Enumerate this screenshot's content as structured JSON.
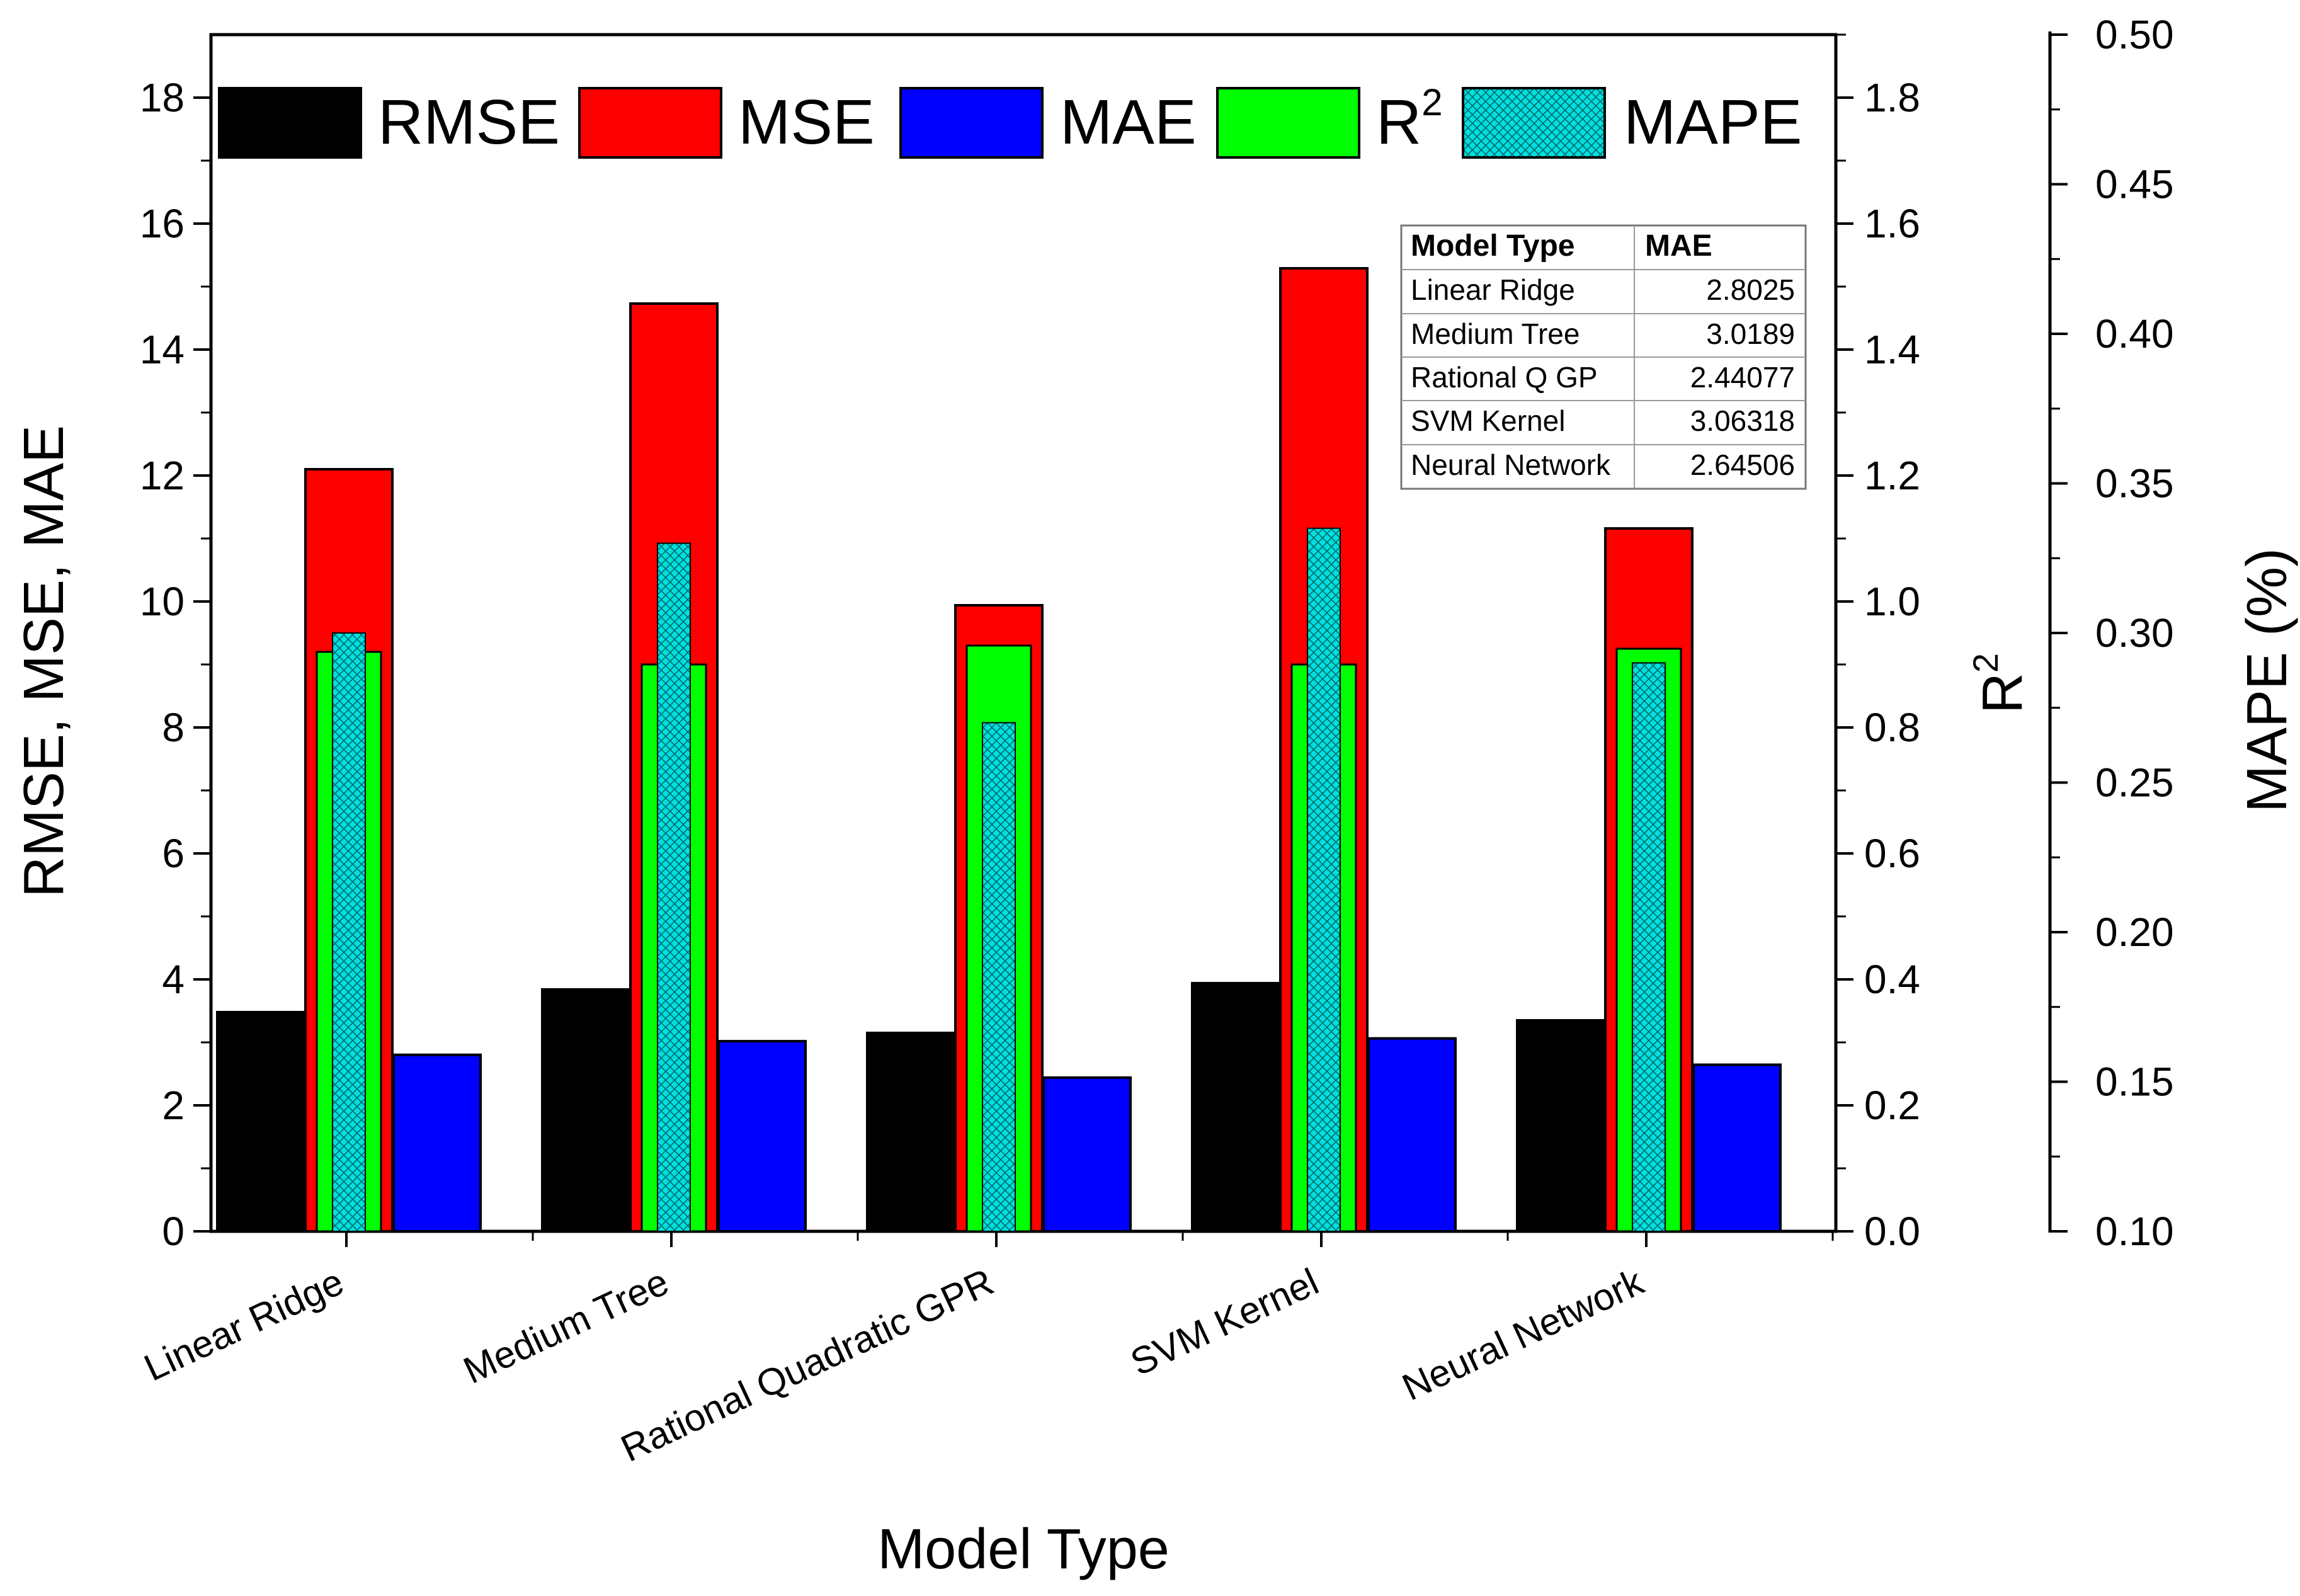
{
  "chart_data": {
    "type": "bar",
    "title": "",
    "xlabel": "Model Type",
    "ylabel": "RMSE, MSE, MAE",
    "y2label": "R",
    "y2label_sup": "2",
    "y3label": "MAPE (%)",
    "categories": [
      "Linear Ridge",
      "Medium Tree",
      "Rational Quadratic GPR",
      "SVM Kernel",
      "Neural Network"
    ],
    "ylim": [
      0,
      19
    ],
    "y2lim": [
      0,
      1.9
    ],
    "y3lim": [
      0.1,
      0.5
    ],
    "yticks": [
      "0",
      "2",
      "4",
      "6",
      "8",
      "10",
      "12",
      "14",
      "16",
      "18"
    ],
    "y2ticks": [
      "0.0",
      "0.2",
      "0.4",
      "0.6",
      "0.8",
      "1.0",
      "1.2",
      "1.4",
      "1.6",
      "1.8"
    ],
    "y3ticks": [
      "0.10",
      "0.15",
      "0.20",
      "0.25",
      "0.30",
      "0.35",
      "0.40",
      "0.45",
      "0.50"
    ],
    "series": [
      {
        "name": "RMSE",
        "axis": "left",
        "color": "#000000",
        "values": [
          3.48,
          3.84,
          3.15,
          3.94,
          3.35
        ]
      },
      {
        "name": "MSE",
        "axis": "left",
        "color": "#ff0000",
        "values": [
          12.1,
          14.73,
          9.94,
          15.29,
          11.16
        ]
      },
      {
        "name": "MAE",
        "axis": "left",
        "color": "#0000ff",
        "values": [
          2.8025,
          3.0189,
          2.44077,
          3.06318,
          2.64506
        ]
      },
      {
        "name": "R",
        "sup": "2",
        "axis": "right",
        "color": "#00ff00",
        "values": [
          0.92,
          0.9,
          0.93,
          0.9,
          0.925
        ]
      },
      {
        "name": "MAPE",
        "axis": "far-right",
        "color": "#00e0e0",
        "pattern": "crosshatch",
        "values": [
          0.3,
          0.33,
          0.27,
          0.335,
          0.29
        ]
      }
    ],
    "legend_position": "top",
    "inset_table": {
      "headers": [
        "Model Type",
        "MAE"
      ],
      "rows": [
        [
          "Linear Ridge",
          "2.8025"
        ],
        [
          "Medium Tree",
          "3.0189"
        ],
        [
          "Rational Q GP",
          "2.44077"
        ],
        [
          "SVM Kernel",
          "3.06318"
        ],
        [
          "Neural Network",
          "2.64506"
        ]
      ]
    }
  }
}
